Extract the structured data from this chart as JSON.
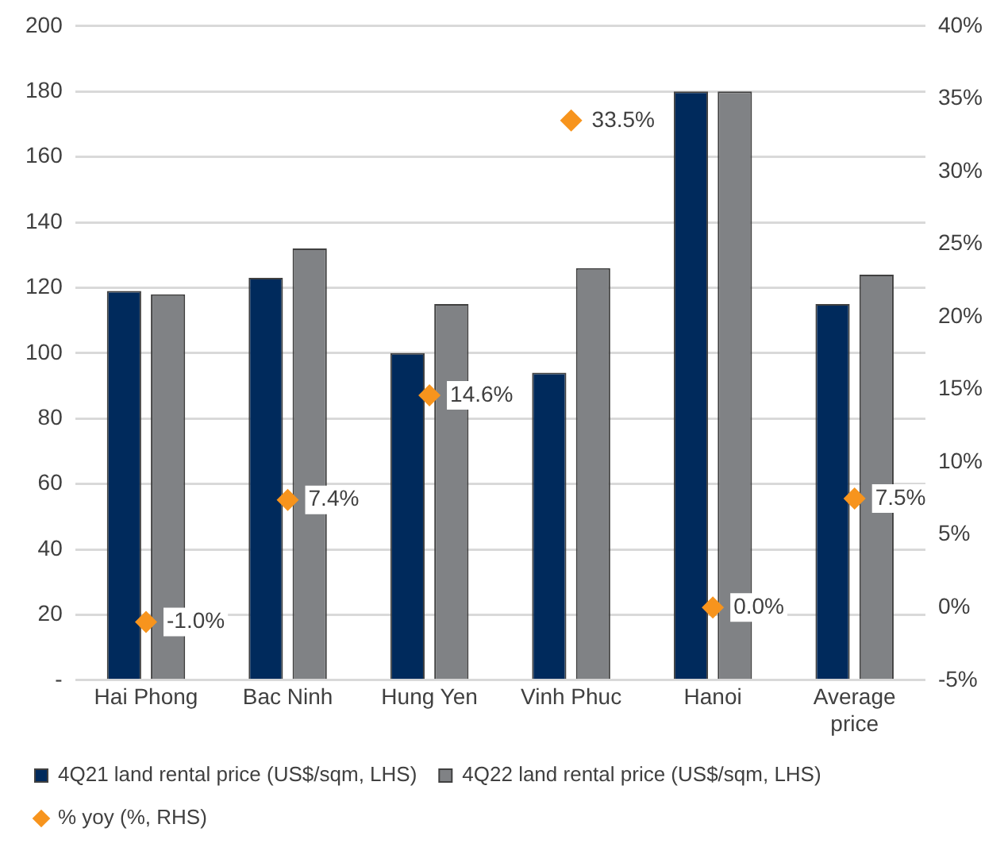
{
  "chart_data": {
    "type": "bar",
    "categories": [
      "Hai Phong",
      "Bac Ninh",
      "Hung Yen",
      "Vinh Phuc",
      "Hanoi",
      "Average price"
    ],
    "series": [
      {
        "name": "4Q21 land rental price (US$/sqm, LHS)",
        "color": "#002a5c",
        "values": [
          119,
          123,
          100,
          94,
          180,
          115
        ]
      },
      {
        "name": "4Q22 land rental price (US$/sqm, LHS)",
        "color": "#808285",
        "values": [
          118,
          132,
          115,
          126,
          180,
          124
        ]
      },
      {
        "name": "% yoy (%, RHS)",
        "type": "scatter",
        "axis": "y2",
        "color": "#f7941d",
        "marker": "diamond",
        "values": [
          -1.0,
          7.4,
          14.6,
          33.5,
          0.0,
          7.5
        ],
        "value_labels": [
          "-1.0%",
          "7.4%",
          "14.6%",
          "33.5%",
          "0.0%",
          "7.5%"
        ]
      }
    ],
    "ylim": [
      0,
      200
    ],
    "yticks": [
      {
        "value": 0,
        "label": "-"
      },
      20,
      40,
      60,
      80,
      100,
      120,
      140,
      160,
      180,
      200
    ],
    "y2lim": [
      -5,
      40
    ],
    "y2ticks": [
      {
        "value": -5,
        "label": "-5%"
      },
      {
        "value": 0,
        "label": "0%"
      },
      {
        "value": 5,
        "label": "5%"
      },
      {
        "value": 10,
        "label": "10%"
      },
      {
        "value": 15,
        "label": "15%"
      },
      {
        "value": 20,
        "label": "20%"
      },
      {
        "value": 25,
        "label": "25%"
      },
      {
        "value": 30,
        "label": "30%"
      },
      {
        "value": 35,
        "label": "35%"
      },
      {
        "value": 40,
        "label": "40%"
      }
    ],
    "grid": "y",
    "legend": "bottom"
  }
}
